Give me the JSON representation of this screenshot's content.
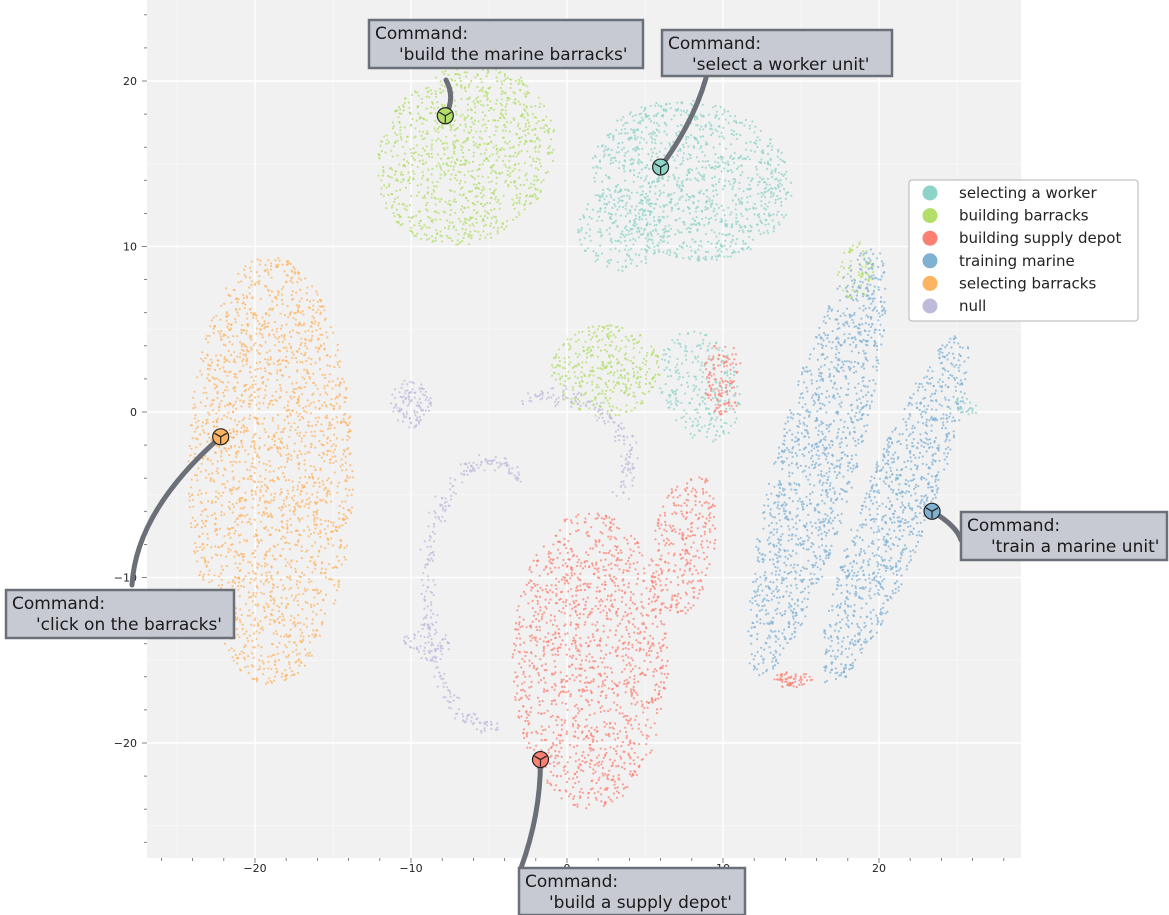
{
  "chart_data": {
    "type": "scatter",
    "title": "",
    "xlabel": "",
    "ylabel": "",
    "xlim": [
      -27,
      29
    ],
    "ylim": [
      -27,
      24.5
    ],
    "x_ticks": [
      -20,
      -10,
      0,
      10,
      20
    ],
    "x_tick_labels": [
      "−20",
      "−10",
      "0",
      "10",
      "20"
    ],
    "y_ticks": [
      20,
      10,
      0,
      -10,
      -20
    ],
    "y_tick_labels": [
      "20",
      "10",
      "0",
      "−10",
      "−20"
    ],
    "grid": true,
    "legend_position": "right",
    "series": [
      {
        "name": "selecting a worker",
        "color": "#8dd3c7",
        "clusters": [
          {
            "shape": "ellipse",
            "cx": 8,
            "cy": 14,
            "rx": 6.5,
            "ry": 4.8,
            "rot": -10,
            "n": 1100
          },
          {
            "shape": "ellipse",
            "cx": 3.5,
            "cy": 11,
            "rx": 2.8,
            "ry": 2.5,
            "rot": 0,
            "n": 200
          },
          {
            "shape": "ellipse",
            "cx": 8.5,
            "cy": 1.5,
            "rx": 2.5,
            "ry": 3.5,
            "rot": 20,
            "n": 260
          },
          {
            "shape": "ellipse",
            "cx": 25.5,
            "cy": 0.3,
            "rx": 1,
            "ry": 0.6,
            "rot": 0,
            "n": 25
          }
        ]
      },
      {
        "name": "building barracks",
        "color": "#b3de69",
        "clusters": [
          {
            "shape": "ellipse",
            "cx": -6.5,
            "cy": 15.5,
            "rx": 6,
            "ry": 5.2,
            "rot": 35,
            "n": 1100
          },
          {
            "shape": "ellipse",
            "cx": 2.5,
            "cy": 2.5,
            "rx": 3.5,
            "ry": 2.8,
            "rot": 0,
            "n": 380
          },
          {
            "shape": "ellipse",
            "cx": 18.5,
            "cy": 8.5,
            "rx": 1.2,
            "ry": 1.8,
            "rot": 0,
            "n": 70
          }
        ]
      },
      {
        "name": "building supply depot",
        "color": "#fb8072",
        "clusters": [
          {
            "shape": "ellipse",
            "cx": 1.5,
            "cy": -15,
            "rx": 5,
            "ry": 9,
            "rot": 0,
            "n": 1400
          },
          {
            "shape": "ellipse",
            "cx": 7.5,
            "cy": -8,
            "rx": 2,
            "ry": 4.5,
            "rot": -10,
            "n": 300
          },
          {
            "shape": "ellipse",
            "cx": 10,
            "cy": 2,
            "rx": 1.3,
            "ry": 2.2,
            "rot": 0,
            "n": 120
          },
          {
            "shape": "ellipse",
            "cx": 14.5,
            "cy": -16.2,
            "rx": 1.3,
            "ry": 0.5,
            "rot": 0,
            "n": 60
          }
        ]
      },
      {
        "name": "training marine",
        "color": "#80b1d3",
        "clusters": [
          {
            "shape": "ellipse",
            "cx": 16,
            "cy": -3,
            "rx": 2.6,
            "ry": 13.5,
            "rot": -16,
            "n": 1300
          },
          {
            "shape": "ellipse",
            "cx": 21,
            "cy": -6,
            "rx": 2.2,
            "ry": 11.5,
            "rot": -22,
            "n": 1000
          }
        ]
      },
      {
        "name": "selecting barracks",
        "color": "#fdb462",
        "clusters": [
          {
            "shape": "ellipse",
            "cx": -19,
            "cy": -3.5,
            "rx": 5.3,
            "ry": 13,
            "rot": 0,
            "n": 2200
          }
        ]
      },
      {
        "name": "null",
        "color": "#bebada",
        "clusters": [
          {
            "shape": "arc",
            "cx": -5,
            "cy": -11,
            "rx": 4,
            "ry": 8,
            "a0": 60,
            "a1": 280,
            "n": 260
          },
          {
            "shape": "arc",
            "cx": -1,
            "cy": -3,
            "rx": 5,
            "ry": 4,
            "a0": -30,
            "a1": 110,
            "n": 150
          },
          {
            "shape": "ellipse",
            "cx": -10,
            "cy": 0.5,
            "rx": 1.3,
            "ry": 1.5,
            "rot": 0,
            "n": 110
          },
          {
            "shape": "ellipse",
            "cx": -9,
            "cy": -14,
            "rx": 1.5,
            "ry": 1.2,
            "rot": 0,
            "n": 70
          }
        ]
      }
    ],
    "annotations": [
      {
        "x": -7.8,
        "y": 17.9,
        "color": "#b3de69",
        "title": "Command:",
        "command": "'build the marine barracks'"
      },
      {
        "x": 6,
        "y": 14.8,
        "color": "#8dd3c7",
        "title": "Command:",
        "command": "'select a worker unit'"
      },
      {
        "x": -22.2,
        "y": -1.5,
        "color": "#fdb462",
        "title": "Command:",
        "command": "'click on the barracks'"
      },
      {
        "x": 23.4,
        "y": -6,
        "color": "#80b1d3",
        "title": "Command:",
        "command": "'train a marine unit'"
      },
      {
        "x": -1.7,
        "y": -21,
        "color": "#fb8072",
        "title": "Command:",
        "command": "'build a supply depot'"
      }
    ]
  }
}
